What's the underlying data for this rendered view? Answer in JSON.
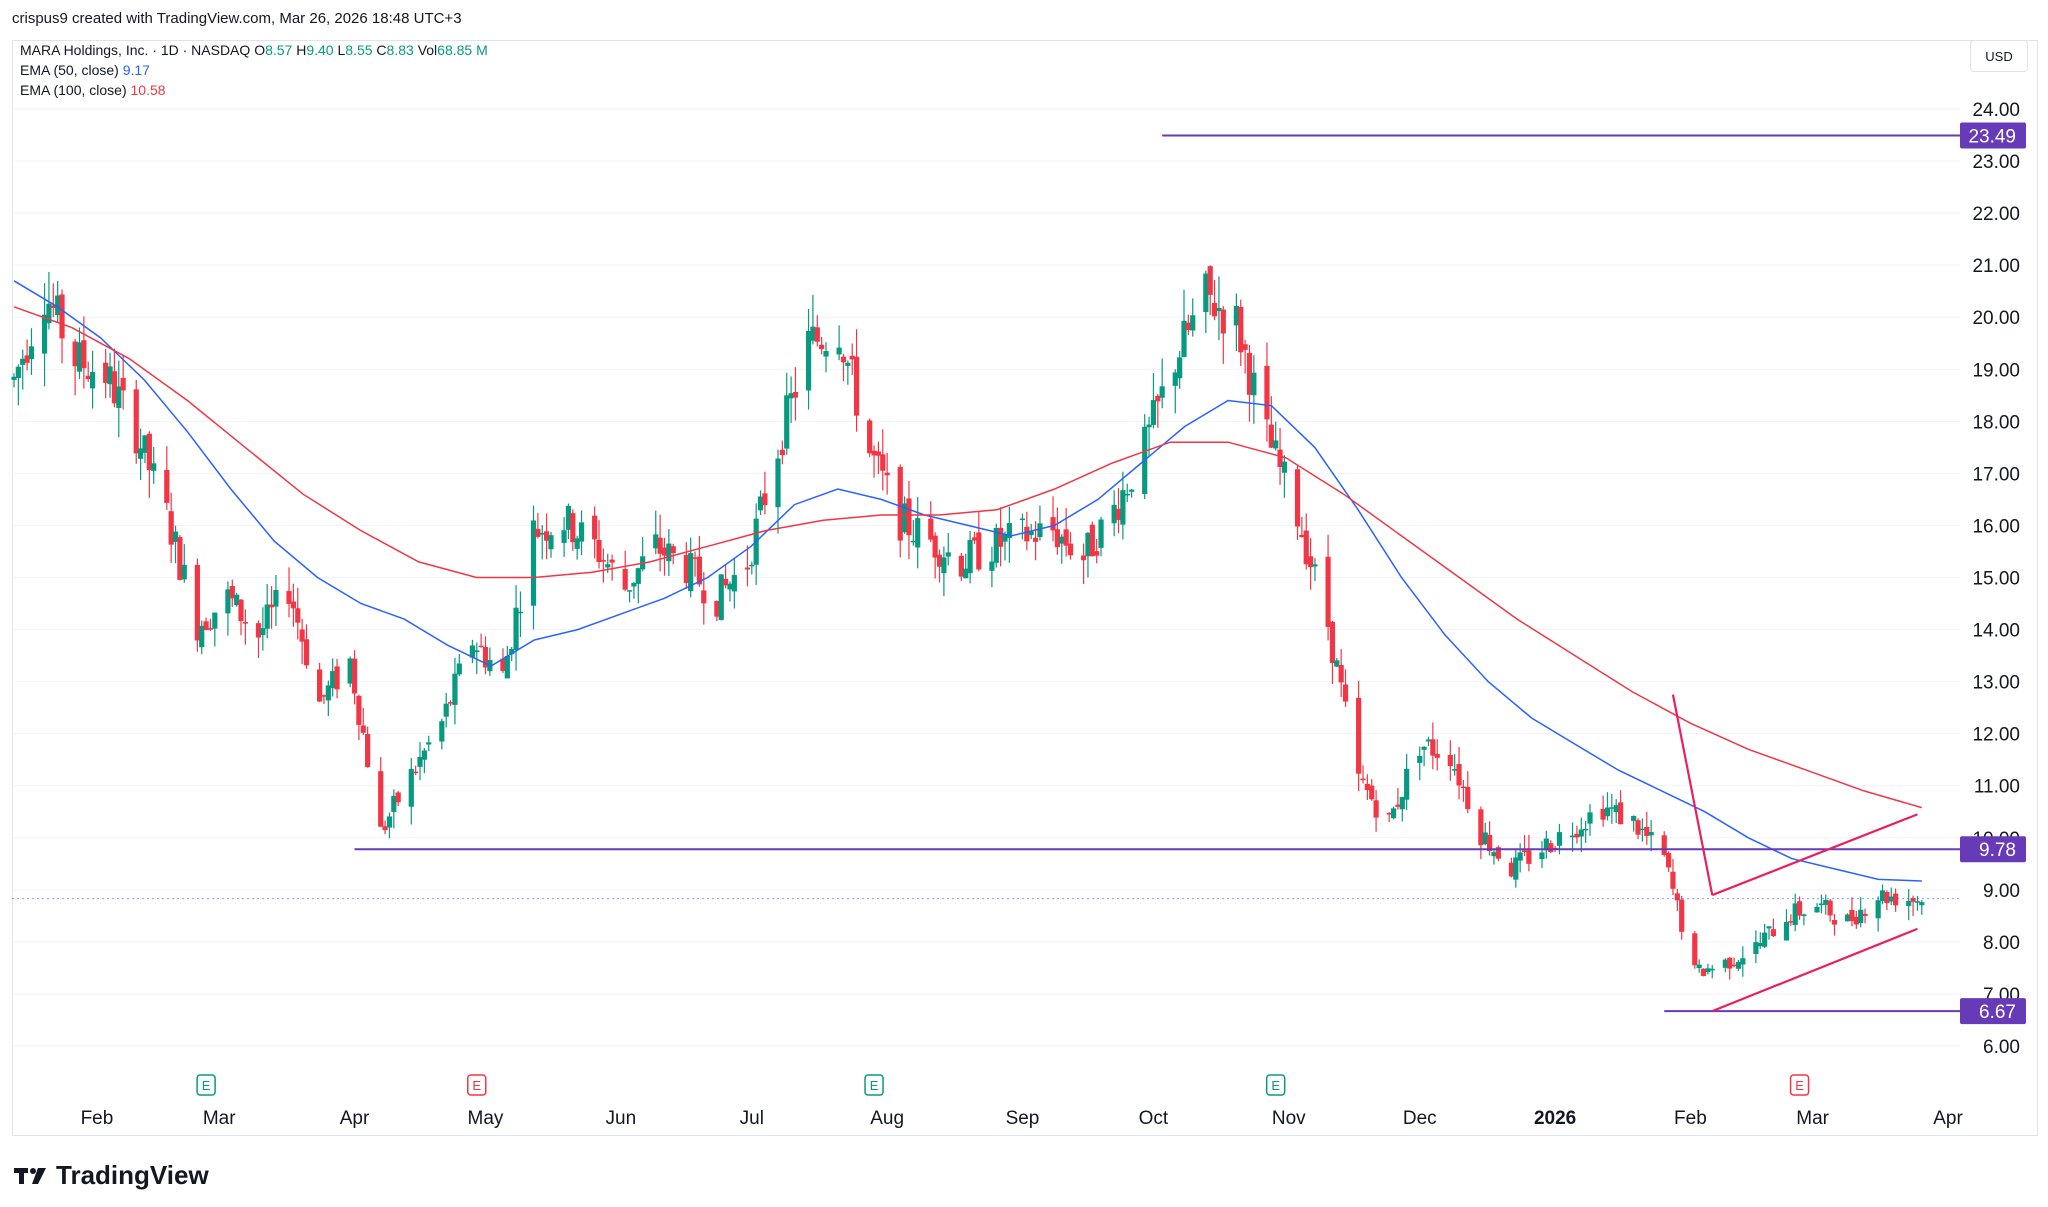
{
  "header": {
    "credit": "crispus9 created with TradingView.com, Mar 26, 2026 18:48 UTC+3"
  },
  "legend": {
    "symbol_line": "MARA Holdings, Inc. · 1D · NASDAQ",
    "o_label": "O",
    "o_value": "8.57",
    "h_label": "H",
    "h_value": "9.40",
    "l_label": "L",
    "l_value": "8.55",
    "c_label": "C",
    "c_value": "8.83",
    "vol_label": "Vol",
    "vol_value": "68.85 M",
    "ema50_label": "EMA (50, close)",
    "ema50_value": "9.17",
    "ema100_label": "EMA (100, close)",
    "ema100_value": "10.58"
  },
  "currency": "USD",
  "brand": {
    "name": "TradingView"
  },
  "colors": {
    "up": "#089981",
    "down": "#f23645",
    "ema50": "#2962ff",
    "ema100": "#f23645",
    "levels": "#673ab7",
    "pattern": "#e91e63",
    "grid": "#f0f3fa",
    "axis_text": "#131722"
  },
  "chart_data": {
    "type": "candlestick",
    "title": "MARA Holdings, Inc. · 1D · NASDAQ",
    "ylim": [
      6.0,
      24.0
    ],
    "y_ticks": [
      "6.00",
      "7.00",
      "8.00",
      "9.00",
      "10.00",
      "11.00",
      "12.00",
      "13.00",
      "14.00",
      "15.00",
      "16.00",
      "17.00",
      "18.00",
      "19.00",
      "20.00",
      "21.00",
      "22.00",
      "23.00",
      "24.00"
    ],
    "x_labels": [
      "Feb",
      "Mar",
      "Apr",
      "May",
      "Jun",
      "Jul",
      "Aug",
      "Sep",
      "Oct",
      "Nov",
      "Dec",
      "2026",
      "Feb",
      "Mar",
      "Apr"
    ],
    "close_path": [
      [
        "2025-01-13",
        18.8
      ],
      [
        "2025-01-20",
        20.5
      ],
      [
        "2025-01-27",
        19.2
      ],
      [
        "2025-02-03",
        18.9
      ],
      [
        "2025-02-10",
        17.8
      ],
      [
        "2025-02-17",
        16.2
      ],
      [
        "2025-02-24",
        14.1
      ],
      [
        "2025-03-03",
        14.6
      ],
      [
        "2025-03-10",
        13.9
      ],
      [
        "2025-03-17",
        14.8
      ],
      [
        "2025-03-24",
        12.6
      ],
      [
        "2025-03-31",
        13.4
      ],
      [
        "2025-04-07",
        10.1
      ],
      [
        "2025-04-14",
        11.2
      ],
      [
        "2025-04-21",
        12.2
      ],
      [
        "2025-04-28",
        13.8
      ],
      [
        "2025-05-05",
        13.1
      ],
      [
        "2025-05-12",
        15.9
      ],
      [
        "2025-05-19",
        16.1
      ],
      [
        "2025-05-26",
        15.6
      ],
      [
        "2025-06-02",
        14.8
      ],
      [
        "2025-06-09",
        15.6
      ],
      [
        "2025-06-16",
        15.2
      ],
      [
        "2025-06-23",
        14.6
      ],
      [
        "2025-06-30",
        15.3
      ],
      [
        "2025-07-07",
        17.5
      ],
      [
        "2025-07-14",
        19.5
      ],
      [
        "2025-07-21",
        19.8
      ],
      [
        "2025-07-28",
        17.4
      ],
      [
        "2025-08-04",
        16.1
      ],
      [
        "2025-08-11",
        15.7
      ],
      [
        "2025-08-18",
        15.3
      ],
      [
        "2025-08-25",
        15.6
      ],
      [
        "2025-09-01",
        15.8
      ],
      [
        "2025-09-08",
        15.9
      ],
      [
        "2025-09-15",
        15.4
      ],
      [
        "2025-09-22",
        16.3
      ],
      [
        "2025-09-29",
        17.5
      ],
      [
        "2025-10-06",
        19.2
      ],
      [
        "2025-10-13",
        20.4
      ],
      [
        "2025-10-20",
        19.9
      ],
      [
        "2025-10-27",
        17.7
      ],
      [
        "2025-11-03",
        16.2
      ],
      [
        "2025-11-10",
        14.1
      ],
      [
        "2025-11-17",
        11.1
      ],
      [
        "2025-11-24",
        10.3
      ],
      [
        "2025-12-01",
        11.8
      ],
      [
        "2025-12-08",
        11.6
      ],
      [
        "2025-12-15",
        10.1
      ],
      [
        "2025-12-22",
        9.4
      ],
      [
        "2025-12-29",
        9.8
      ],
      [
        "2026-01-05",
        10.2
      ],
      [
        "2026-01-12",
        10.6
      ],
      [
        "2026-01-19",
        10.3
      ],
      [
        "2026-01-26",
        9.6
      ],
      [
        "2026-02-02",
        7.4
      ],
      [
        "2026-02-09",
        7.6
      ],
      [
        "2026-02-16",
        7.9
      ],
      [
        "2026-02-23",
        8.5
      ],
      [
        "2026-03-02",
        8.7
      ],
      [
        "2026-03-09",
        8.4
      ],
      [
        "2026-03-16",
        8.9
      ],
      [
        "2026-03-23",
        8.83
      ]
    ],
    "ema50_path": [
      20.7,
      20.2,
      19.6,
      18.8,
      17.8,
      16.7,
      15.7,
      15.0,
      14.5,
      14.2,
      13.7,
      13.3,
      13.8,
      14.0,
      14.3,
      14.6,
      15.0,
      15.6,
      16.4,
      16.7,
      16.5,
      16.2,
      16.0,
      15.8,
      16.0,
      16.5,
      17.2,
      17.9,
      18.4,
      18.3,
      17.5,
      16.3,
      15.0,
      13.9,
      13.0,
      12.3,
      11.8,
      11.3,
      10.9,
      10.5,
      10.0,
      9.6,
      9.4,
      9.2,
      9.17
    ],
    "ema100_path": [
      20.2,
      19.8,
      19.2,
      18.4,
      17.5,
      16.6,
      15.9,
      15.3,
      15.0,
      15.0,
      15.1,
      15.3,
      15.6,
      15.9,
      16.1,
      16.2,
      16.2,
      16.3,
      16.7,
      17.2,
      17.6,
      17.6,
      17.3,
      16.6,
      15.8,
      15.0,
      14.2,
      13.5,
      12.8,
      12.2,
      11.7,
      11.3,
      10.9,
      10.58
    ],
    "levels": [
      {
        "label": "23.49",
        "value": 23.49
      },
      {
        "label": "9.78",
        "value": 9.78
      },
      {
        "label": "6.67",
        "value": 6.67
      }
    ],
    "last_price": 8.83,
    "events": [
      {
        "label": "E",
        "color": "green",
        "date": "2025-02-26"
      },
      {
        "label": "E",
        "color": "red",
        "date": "2025-04-29"
      },
      {
        "label": "E",
        "color": "green",
        "date": "2025-07-29"
      },
      {
        "label": "E",
        "color": "green",
        "date": "2025-10-29"
      },
      {
        "label": "E",
        "color": "red",
        "date": "2026-02-26"
      }
    ]
  }
}
